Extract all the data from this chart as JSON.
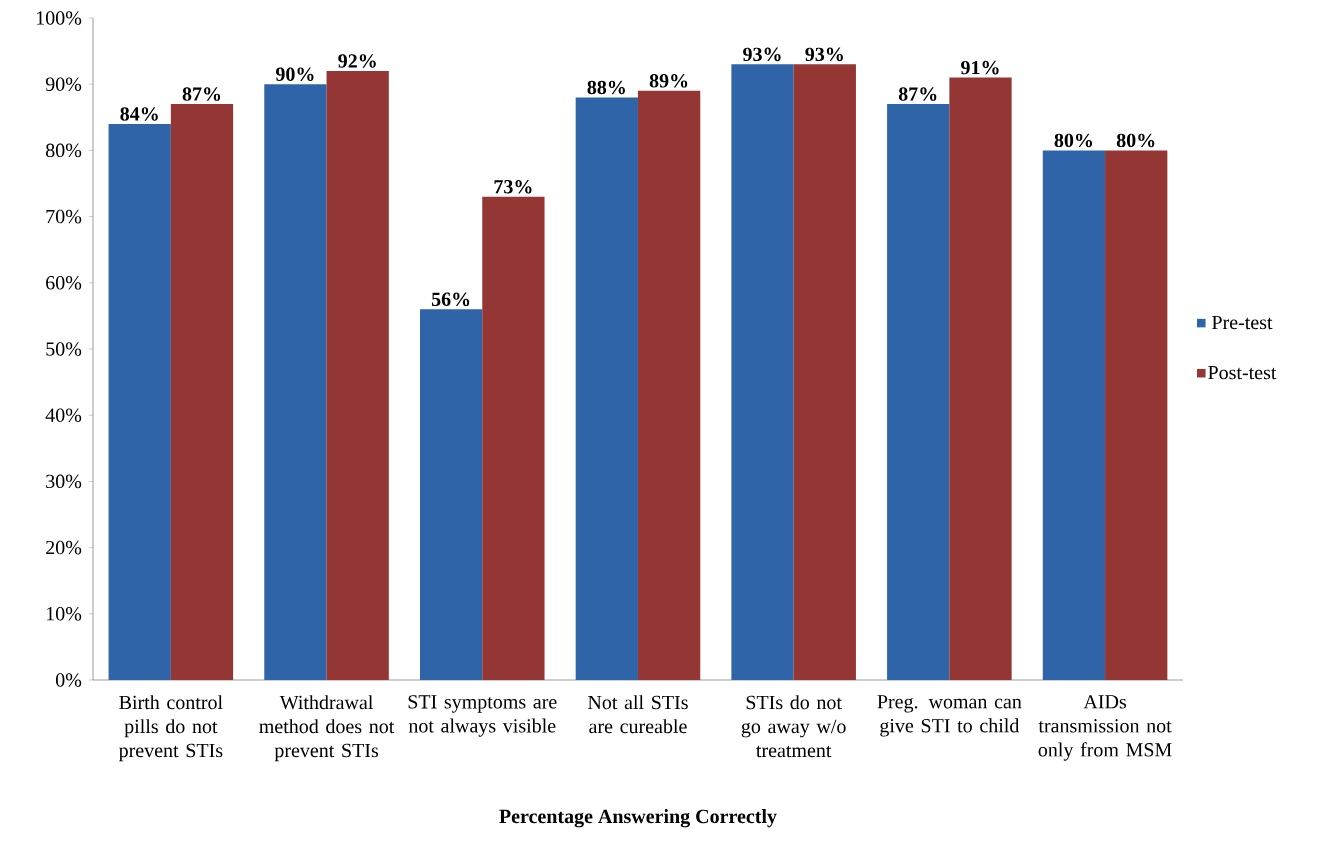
{
  "chart_data": {
    "type": "bar",
    "xlabel": "Percentage Answering Correctly",
    "categories": [
      "Birth control pills do not prevent STIs",
      "Withdrawal method does not prevent STIs",
      "STI symptoms are not always visible",
      "Not all STIs are cureable",
      "STIs do not go away w/o treatment",
      "Preg. woman can give STI to child",
      "AIDs transmission not only from MSM"
    ],
    "series": [
      {
        "name": "Pre-test",
        "color": "#2f64a8",
        "values": [
          84,
          90,
          56,
          88,
          93,
          87,
          80
        ],
        "value_labels": [
          "84%",
          "90%",
          "56%",
          "88%",
          "93%",
          "87%",
          "80%"
        ]
      },
      {
        "name": "Post-test",
        "color": "#943634",
        "values": [
          87,
          92,
          73,
          89,
          93,
          91,
          80
        ],
        "value_labels": [
          "87%",
          "92%",
          "73%",
          "89%",
          "93%",
          "91%",
          "80%"
        ]
      }
    ],
    "ylim": [
      0,
      100
    ],
    "yticks": [
      {
        "value": 0,
        "label": "0%"
      },
      {
        "value": 10,
        "label": "10%"
      },
      {
        "value": 20,
        "label": "20%"
      },
      {
        "value": 30,
        "label": "30%"
      },
      {
        "value": 40,
        "label": "40%"
      },
      {
        "value": 50,
        "label": "50%"
      },
      {
        "value": 60,
        "label": "60%"
      },
      {
        "value": 70,
        "label": "70%"
      },
      {
        "value": 80,
        "label": "80%"
      },
      {
        "value": 90,
        "label": "90%"
      },
      {
        "value": 100,
        "label": "100%"
      }
    ],
    "grid": false,
    "legend": "right"
  }
}
